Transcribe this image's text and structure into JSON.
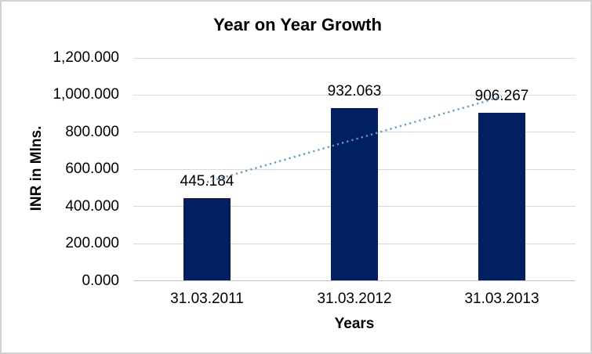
{
  "chart_data": {
    "type": "bar",
    "title": "Year on Year Growth",
    "xlabel": "Years",
    "ylabel": "INR in Mlns.",
    "categories": [
      "31.03.2011",
      "31.03.2012",
      "31.03.2013"
    ],
    "values": [
      445.184,
      932.063,
      906.267
    ],
    "data_labels": [
      "445.184",
      "932.063",
      "906.267"
    ],
    "ylim": [
      0,
      1200
    ],
    "ytick_step": 200,
    "ytick_labels": [
      "0.000",
      "200.000",
      "400.000",
      "600.000",
      "800.000",
      "1,000.000",
      "1,200.000"
    ],
    "grid": true,
    "legend_position": "none",
    "bar_color": "#002060",
    "trendline": {
      "type": "linear",
      "line_style": "dotted",
      "color": "#5b9bd5"
    }
  }
}
